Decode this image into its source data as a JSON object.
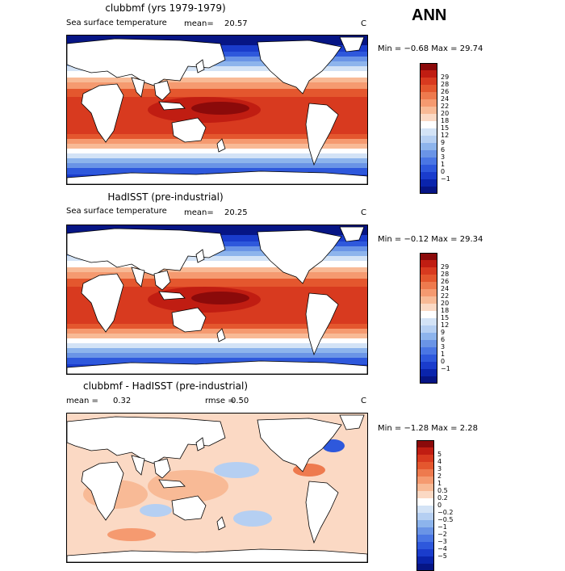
{
  "season": "ANN",
  "panels": [
    {
      "title": "clubbmf (yrs 1979-1979)",
      "variable": "Sea surface temperature",
      "mean_label": "mean=",
      "mean_value": "20.57",
      "units": "C",
      "minmax": "Min =  −0.68 Max =   29.74",
      "colorbar": {
        "colors": [
          "#8b0a0a",
          "#c01d12",
          "#d83a1f",
          "#e4572e",
          "#ee7a4e",
          "#f59a70",
          "#f8ba96",
          "#fbd9c4",
          "#ffffff",
          "#d3e3f6",
          "#b5cff2",
          "#8db4ec",
          "#6a94e6",
          "#4a76e4",
          "#2e58dc",
          "#1a3ccc",
          "#0a24ac",
          "#061585"
        ],
        "labels": [
          "29",
          "28",
          "26",
          "24",
          "22",
          "20",
          "18",
          "15",
          "12",
          "9",
          "6",
          "3",
          "1",
          "0",
          "−1"
        ]
      }
    },
    {
      "title": "HadISST (pre-industrial)",
      "variable": "Sea surface temperature",
      "mean_label": "mean=",
      "mean_value": "20.25",
      "units": "C",
      "minmax": "Min =  −0.12 Max =   29.34",
      "colorbar": {
        "colors": [
          "#8b0a0a",
          "#c01d12",
          "#d83a1f",
          "#e4572e",
          "#ee7a4e",
          "#f59a70",
          "#f8ba96",
          "#fbd9c4",
          "#ffffff",
          "#d3e3f6",
          "#b5cff2",
          "#8db4ec",
          "#6a94e6",
          "#4a76e4",
          "#2e58dc",
          "#1a3ccc",
          "#0a24ac",
          "#061585"
        ],
        "labels": [
          "29",
          "28",
          "26",
          "24",
          "22",
          "20",
          "18",
          "15",
          "12",
          "9",
          "6",
          "3",
          "1",
          "0",
          "−1"
        ]
      }
    },
    {
      "title": "clubbmf - HadISST (pre-industrial)",
      "variable": "",
      "mean_label": "mean =",
      "mean_value": "0.32",
      "rmse_label": "rmse =",
      "rmse_value": "0.50",
      "units": "C",
      "minmax": "Min =  −1.28 Max =    2.28",
      "colorbar": {
        "colors": [
          "#8b0a0a",
          "#c01d12",
          "#d83a1f",
          "#e4572e",
          "#ee7a4e",
          "#f59a70",
          "#f8ba96",
          "#fbd9c4",
          "#ffffff",
          "#d3e3f6",
          "#b5cff2",
          "#8db4ec",
          "#6a94e6",
          "#4a76e4",
          "#2e58dc",
          "#1a3ccc",
          "#0a24ac",
          "#061585"
        ],
        "labels": [
          "5",
          "4",
          "3",
          "2",
          "1",
          "0.5",
          "0.2",
          "0",
          "−0.2",
          "−0.5",
          "−1",
          "−2",
          "−3",
          "−4",
          "−5"
        ]
      }
    }
  ],
  "chart_data": [
    {
      "type": "heatmap",
      "title": "clubbmf (yrs 1979-1979)",
      "subtitle": "Sea surface temperature",
      "units": "C",
      "mean": 20.57,
      "min": -0.68,
      "max": 29.74,
      "levels": [
        -1,
        0,
        1,
        3,
        6,
        9,
        12,
        15,
        18,
        20,
        22,
        24,
        26,
        28,
        29
      ]
    },
    {
      "type": "heatmap",
      "title": "HadISST (pre-industrial)",
      "subtitle": "Sea surface temperature",
      "units": "C",
      "mean": 20.25,
      "min": -0.12,
      "max": 29.34,
      "levels": [
        -1,
        0,
        1,
        3,
        6,
        9,
        12,
        15,
        18,
        20,
        22,
        24,
        26,
        28,
        29
      ]
    },
    {
      "type": "heatmap",
      "title": "clubbmf - HadISST (pre-industrial)",
      "units": "C",
      "mean": 0.32,
      "rmse": 0.5,
      "min": -1.28,
      "max": 2.28,
      "levels": [
        -5,
        -4,
        -3,
        -2,
        -1,
        -0.5,
        -0.2,
        0,
        0.2,
        0.5,
        1,
        2,
        3,
        4,
        5
      ]
    }
  ]
}
